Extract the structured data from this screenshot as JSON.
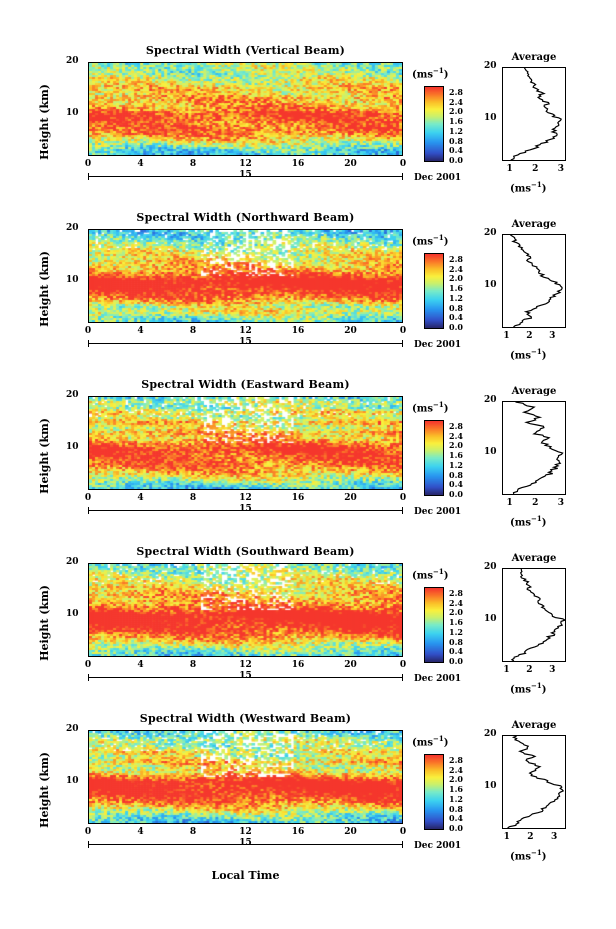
{
  "figure": {
    "xaxis_label": "Local Time",
    "date_text": "Dec 2001",
    "date_day": "15",
    "units_text": "(ms",
    "units_exp": "−1",
    "avg_title": "Average"
  },
  "chart_data": [
    {
      "type": "heatmap",
      "title": "Spectral Width (Vertical Beam)",
      "ylabel": "Height (km)",
      "x_ticks": [
        "0",
        "4",
        "8",
        "12",
        "16",
        "20",
        "0"
      ],
      "y_ticks": [
        "20",
        "10"
      ],
      "xlim": [
        0,
        24
      ],
      "ylim": [
        2,
        20
      ],
      "colorbar_ticks": [
        "2.8",
        "2.4",
        "2.0",
        "1.6",
        "1.2",
        "0.8",
        "0.4",
        "0.0"
      ],
      "colorbar_range": [
        0,
        3.0
      ],
      "profile": {
        "title": "Average",
        "xlabel_ticks": [
          "1",
          "2",
          "3"
        ],
        "xlim": [
          0.7,
          3.2
        ],
        "heights_km": [
          2,
          3,
          4,
          5,
          6,
          7,
          8,
          9,
          10,
          11,
          12,
          13,
          14,
          15,
          16,
          17,
          18,
          19,
          20
        ],
        "values": [
          1.1,
          1.3,
          1.8,
          2.2,
          2.6,
          2.8,
          2.7,
          2.9,
          3.0,
          2.6,
          2.4,
          2.5,
          2.2,
          2.3,
          2.0,
          1.9,
          1.7,
          1.8,
          1.6
        ]
      }
    },
    {
      "type": "heatmap",
      "title": "Spectral Width (Northward Beam)",
      "ylabel": "Height (km)",
      "x_ticks": [
        "0",
        "4",
        "8",
        "12",
        "16",
        "20",
        "0"
      ],
      "y_ticks": [
        "20",
        "10"
      ],
      "xlim": [
        0,
        24
      ],
      "ylim": [
        2,
        20
      ],
      "colorbar_ticks": [
        "2.8",
        "2.4",
        "2.0",
        "1.6",
        "1.2",
        "0.8",
        "0.4",
        "0.0"
      ],
      "colorbar_range": [
        0,
        3.0
      ],
      "profile": {
        "title": "Average",
        "xlabel_ticks": [
          "1",
          "2",
          "3"
        ],
        "xlim": [
          0.8,
          3.6
        ],
        "heights_km": [
          2,
          3,
          4,
          5,
          6,
          7,
          8,
          9,
          10,
          11,
          12,
          13,
          14,
          15,
          16,
          17,
          18,
          19,
          20
        ],
        "values": [
          1.3,
          1.6,
          2.1,
          1.9,
          2.4,
          2.8,
          3.1,
          3.3,
          3.5,
          3.0,
          2.6,
          2.4,
          2.2,
          2.0,
          1.9,
          1.7,
          1.5,
          1.3,
          1.2
        ]
      }
    },
    {
      "type": "heatmap",
      "title": "Spectral Width (Eastward Beam)",
      "ylabel": "Height (km)",
      "x_ticks": [
        "0",
        "4",
        "8",
        "12",
        "16",
        "20",
        "0"
      ],
      "y_ticks": [
        "20",
        "10"
      ],
      "xlim": [
        0,
        24
      ],
      "ylim": [
        2,
        20
      ],
      "colorbar_ticks": [
        "2.8",
        "2.4",
        "2.0",
        "1.6",
        "1.2",
        "0.8",
        "0.4",
        "0.0"
      ],
      "colorbar_range": [
        0,
        3.0
      ],
      "profile": {
        "title": "Average",
        "xlabel_ticks": [
          "1",
          "2",
          "3"
        ],
        "xlim": [
          0.7,
          3.2
        ],
        "heights_km": [
          2,
          3,
          4,
          5,
          6,
          7,
          8,
          9,
          10,
          11,
          12,
          13,
          14,
          15,
          16,
          17,
          18,
          19,
          20
        ],
        "values": [
          1.1,
          1.4,
          1.9,
          2.3,
          2.6,
          2.8,
          2.9,
          3.0,
          3.1,
          2.7,
          2.3,
          2.5,
          1.9,
          2.4,
          1.7,
          2.2,
          1.5,
          1.9,
          1.3
        ]
      }
    },
    {
      "type": "heatmap",
      "title": "Spectral Width (Southward Beam)",
      "ylabel": "Height (km)",
      "x_ticks": [
        "0",
        "4",
        "8",
        "12",
        "16",
        "20",
        "0"
      ],
      "y_ticks": [
        "20",
        "10"
      ],
      "xlim": [
        0,
        24
      ],
      "ylim": [
        2,
        20
      ],
      "colorbar_ticks": [
        "2.8",
        "2.4",
        "2.0",
        "1.6",
        "1.2",
        "0.8",
        "0.4",
        "0.0"
      ],
      "colorbar_range": [
        0,
        3.0
      ],
      "profile": {
        "title": "Average",
        "xlabel_ticks": [
          "1",
          "2",
          "3"
        ],
        "xlim": [
          0.8,
          3.6
        ],
        "heights_km": [
          2,
          3,
          4,
          5,
          6,
          7,
          8,
          9,
          10,
          11,
          12,
          13,
          14,
          15,
          16,
          17,
          18,
          19,
          20
        ],
        "values": [
          1.2,
          1.5,
          1.9,
          2.3,
          2.7,
          3.0,
          3.2,
          3.4,
          3.5,
          3.0,
          2.7,
          2.5,
          2.4,
          2.2,
          2.0,
          1.9,
          1.8,
          1.6,
          1.5
        ]
      }
    },
    {
      "type": "heatmap",
      "title": "Spectral Width (Westward Beam)",
      "ylabel": "Height (km)",
      "x_ticks": [
        "0",
        "4",
        "8",
        "12",
        "16",
        "20",
        "0"
      ],
      "y_ticks": [
        "20",
        "10"
      ],
      "xlim": [
        0,
        24
      ],
      "ylim": [
        2,
        20
      ],
      "colorbar_ticks": [
        "2.8",
        "2.4",
        "2.0",
        "1.6",
        "1.2",
        "0.8",
        "0.4",
        "0.0"
      ],
      "colorbar_range": [
        0,
        3.0
      ],
      "profile": {
        "title": "Average",
        "xlabel_ticks": [
          "1",
          "2",
          "3"
        ],
        "xlim": [
          0.8,
          3.5
        ],
        "heights_km": [
          2,
          3,
          4,
          5,
          6,
          7,
          8,
          9,
          10,
          11,
          12,
          13,
          14,
          15,
          16,
          17,
          18,
          19,
          20
        ],
        "values": [
          1.1,
          1.4,
          1.8,
          2.3,
          2.7,
          3.0,
          3.2,
          3.3,
          3.4,
          2.8,
          2.2,
          2.0,
          2.4,
          1.8,
          2.1,
          1.6,
          1.9,
          1.5,
          1.3
        ]
      }
    }
  ]
}
